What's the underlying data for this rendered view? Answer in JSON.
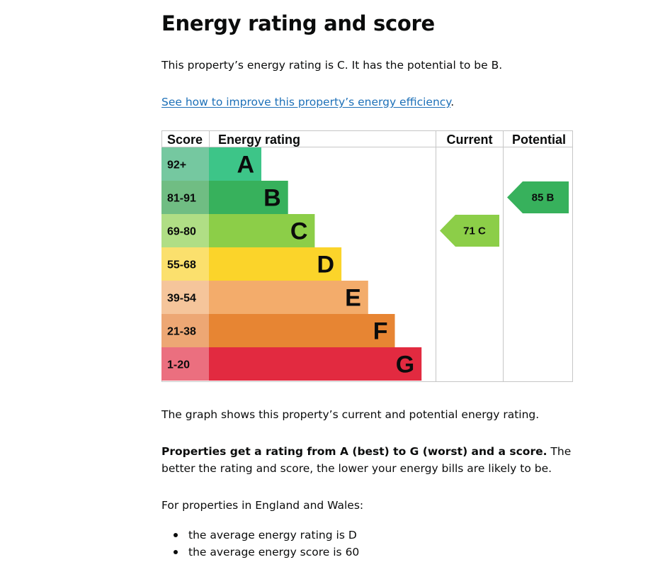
{
  "page": {
    "title": "Energy rating and score",
    "intro": "This property’s energy rating is C. It has the potential to be B.",
    "improve_link": "See how to improve this property’s energy efficiency",
    "improve_link_suffix": ".",
    "graph_caption": "The graph shows this property’s current and potential energy rating.",
    "ratings_bold": "Properties get a rating from A (best) to G (worst) and a score.",
    "ratings_rest": " The better the rating and score, the lower your energy bills are likely to be.",
    "region_intro": "For properties in England and Wales:",
    "averages": [
      "the average energy rating is D",
      "the average energy score is 60"
    ]
  },
  "chart_data": {
    "type": "bar",
    "headers": {
      "score": "Score",
      "rating": "Energy rating",
      "current": "Current",
      "potential": "Potential"
    },
    "bands": [
      {
        "letter": "A",
        "score": "92+",
        "color": "#3dc588",
        "score_bg": "#75c8a0"
      },
      {
        "letter": "B",
        "score": "81-91",
        "color": "#37b15c",
        "score_bg": "#70bd83"
      },
      {
        "letter": "C",
        "score": "69-80",
        "color": "#8cce48",
        "score_bg": "#b0de85"
      },
      {
        "letter": "D",
        "score": "55-68",
        "color": "#fbd42a",
        "score_bg": "#fbe06d"
      },
      {
        "letter": "E",
        "score": "39-54",
        "color": "#f3ac6b",
        "score_bg": "#f5c59b"
      },
      {
        "letter": "F",
        "score": "21-38",
        "color": "#e78533",
        "score_bg": "#eda774"
      },
      {
        "letter": "G",
        "score": "1-20",
        "color": "#e22a40",
        "score_bg": "#eb6f7f"
      }
    ],
    "current": {
      "score": 71,
      "band": "C",
      "label": "71  C",
      "color": "#8cce48"
    },
    "potential": {
      "score": 85,
      "band": "B",
      "label": "85  B",
      "color": "#37b15c"
    }
  }
}
